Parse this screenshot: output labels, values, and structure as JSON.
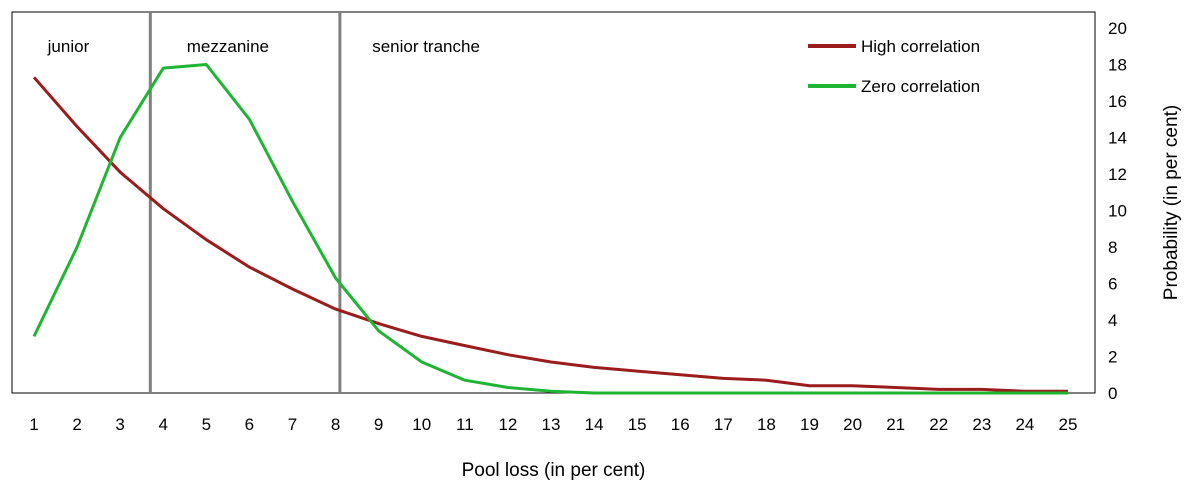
{
  "chart_data": {
    "type": "line",
    "x": [
      1,
      2,
      3,
      4,
      5,
      6,
      7,
      8,
      9,
      10,
      11,
      12,
      13,
      14,
      15,
      16,
      17,
      18,
      19,
      20,
      21,
      22,
      23,
      24,
      25
    ],
    "x_tick_labels": [
      "1",
      "2",
      "3",
      "4",
      "5",
      "6",
      "7",
      "8",
      "9",
      "10",
      "11",
      "12",
      "13",
      "14",
      "15",
      "16",
      "17",
      "18",
      "19",
      "20",
      "21",
      "22",
      "23",
      "24",
      "25"
    ],
    "series": [
      {
        "name": "High correlation",
        "color": "#9b1c1c",
        "values": [
          17.3,
          14.6,
          12.1,
          10.1,
          8.4,
          6.9,
          5.7,
          4.6,
          3.8,
          3.1,
          2.6,
          2.1,
          1.7,
          1.4,
          1.2,
          1.0,
          0.8,
          0.7,
          0.4,
          0.4,
          0.3,
          0.2,
          0.2,
          0.1,
          0.1
        ]
      },
      {
        "name": "Zero correlation",
        "color": "#1fb532",
        "values": [
          3.1,
          8.0,
          14.0,
          17.8,
          18.0,
          15.0,
          10.5,
          6.3,
          3.4,
          1.7,
          0.7,
          0.3,
          0.1,
          0.0,
          0.0,
          0.0,
          0.0,
          0.0,
          0.0,
          0.0,
          0.0,
          0.0,
          0.0,
          0.0,
          0.0
        ]
      }
    ],
    "ylim": [
      0,
      20
    ],
    "y_ticks": [
      0,
      2,
      4,
      6,
      8,
      10,
      12,
      14,
      16,
      18,
      20
    ],
    "y_axis_side": "right",
    "xlabel": "Pool loss (in per cent)",
    "ylabel": "Probability (in per cent)",
    "legend_position": "top-right",
    "grid": false,
    "tranche_boundaries": [
      3.7,
      8.1
    ],
    "tranche_boundary_color": "#808080",
    "annotations": [
      {
        "text": "junior",
        "x": 1.8
      },
      {
        "text": "mezzanine",
        "x": 5.5
      },
      {
        "text": "senior tranche",
        "x": 10.1
      }
    ]
  }
}
